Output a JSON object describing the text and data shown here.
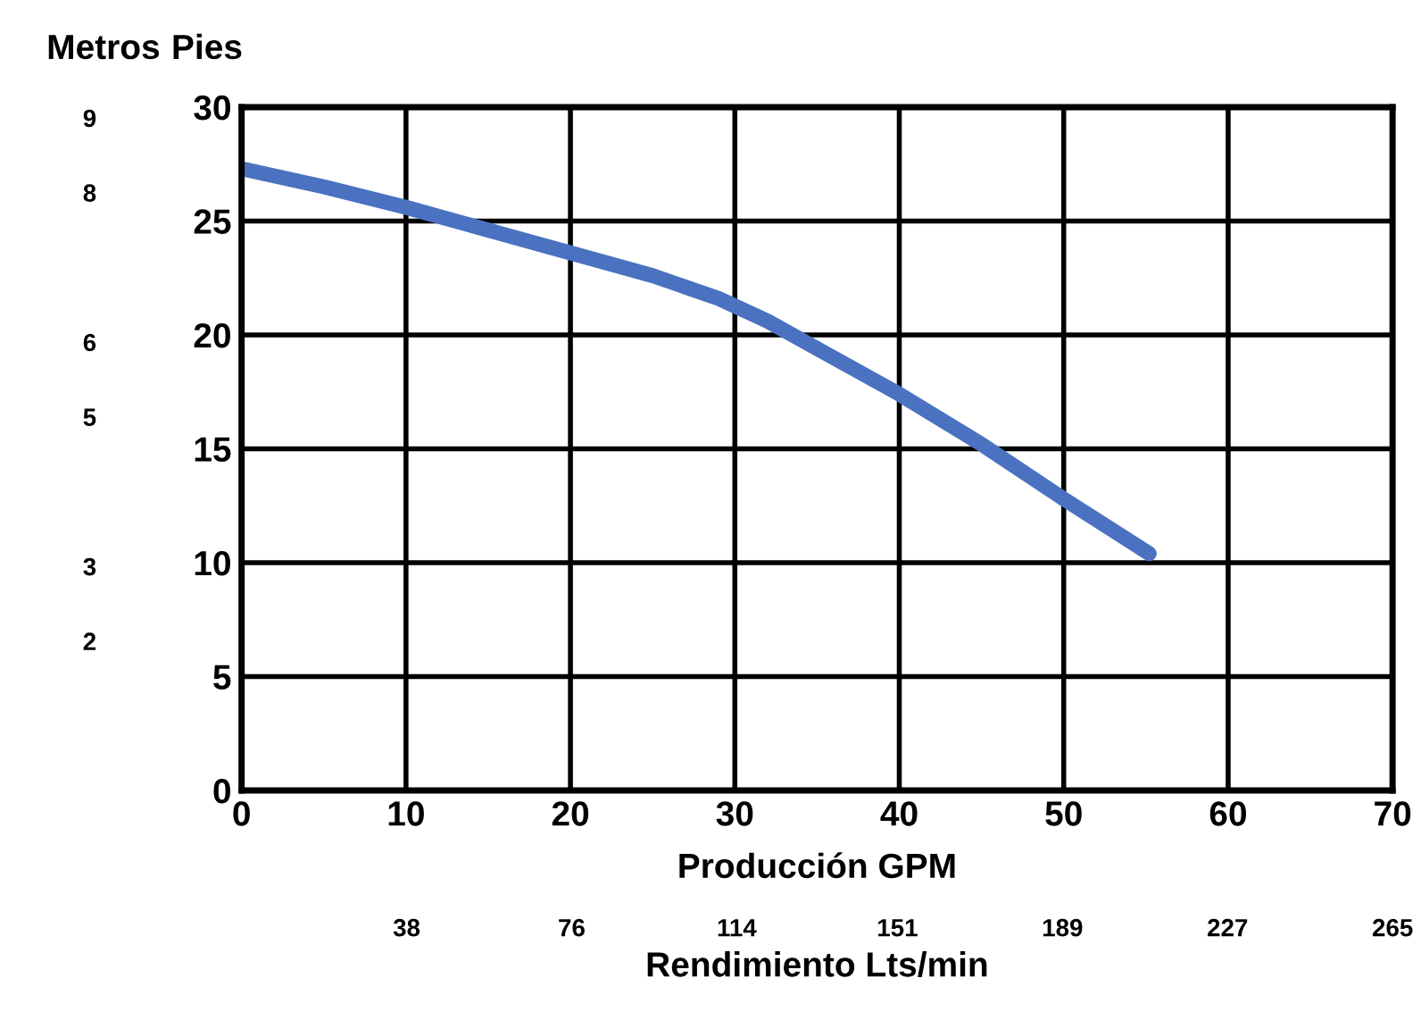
{
  "chart_data": {
    "type": "line",
    "xlabel": "Producción GPM",
    "ylabel": "Pies",
    "y2label": "Metros",
    "x2label": "Rendimiento Lts/min",
    "xlim": [
      0,
      70
    ],
    "xticks": [
      0,
      10,
      20,
      30,
      40,
      50,
      60,
      70
    ],
    "ylim": [
      0,
      30
    ],
    "yticks": [
      0,
      5,
      10,
      15,
      20,
      25,
      30
    ],
    "y2lim": [
      0,
      9.144
    ],
    "y2ticks": [
      2,
      3,
      5,
      6,
      8,
      9
    ],
    "x2lim": [
      0,
      265
    ],
    "x2ticks": [
      38,
      76,
      114,
      151,
      189,
      227,
      265
    ],
    "grid": true,
    "marker": "none",
    "line_style": "solid",
    "series": [
      {
        "color": "#4a72c0",
        "x": [
          0,
          5,
          10,
          15,
          20,
          25,
          29,
          32,
          36,
          40,
          45,
          50,
          55.2
        ],
        "values": [
          27.3,
          26.5,
          25.6,
          24.6,
          23.6,
          22.6,
          21.6,
          20.6,
          19.0,
          17.4,
          15.2,
          12.8,
          10.4
        ]
      }
    ]
  }
}
